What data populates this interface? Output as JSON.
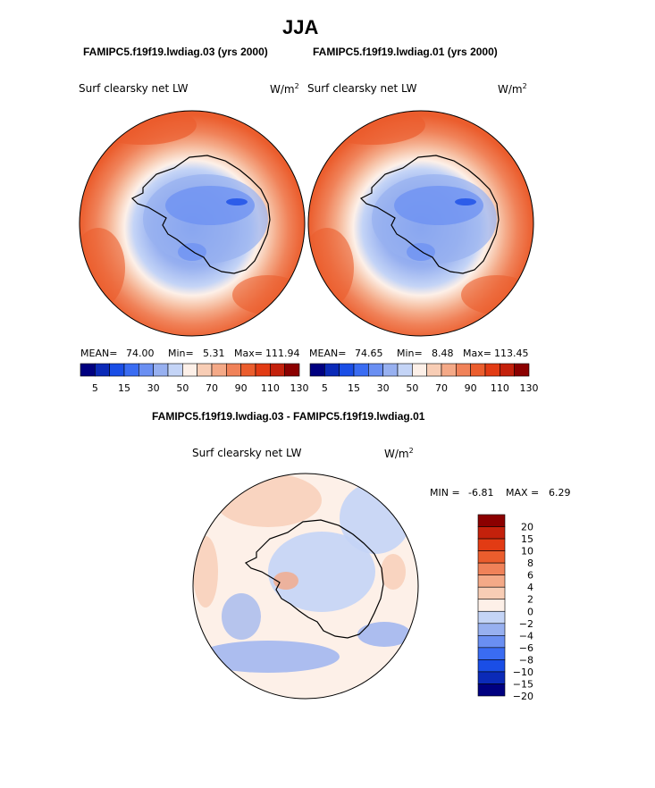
{
  "header": {
    "season": "JJA",
    "case_a_title": "FAMIPC5.f19f19.lwdiag.03 (yrs 2000)",
    "case_b_title": "FAMIPC5.f19f19.lwdiag.01 (yrs 2000)",
    "diff_title": "FAMIPC5.f19f19.lwdiag.03 - FAMIPC5.f19f19.lwdiag.01"
  },
  "colors": {
    "abs_scale": [
      "#000080",
      "#0b2ab8",
      "#1a4ee6",
      "#3a6cf2",
      "#6a8ff2",
      "#97b0f0",
      "#c4d4f6",
      "#fdf0e8",
      "#f8cdb5",
      "#f4a987",
      "#f08259",
      "#eb5d2d",
      "#e23b14",
      "#c4210c",
      "#8b0000"
    ],
    "diff_scale": [
      "#000080",
      "#0b2ab8",
      "#1a4ee6",
      "#3a6cf2",
      "#6a8ff2",
      "#97b0f0",
      "#c4d4f6",
      "#fdf0e8",
      "#f8cdb5",
      "#f4a987",
      "#f08259",
      "#eb5d2d",
      "#e23b14",
      "#c4210c",
      "#8b0000"
    ]
  },
  "chart_data": [
    {
      "type": "heatmap",
      "panel": "case_a",
      "variable": "Surf clearsky net LW",
      "units": "W/m2",
      "units_base": "W/m",
      "units_exp": "2",
      "mean_label": "MEAN=",
      "mean": "74.00",
      "min_label": "Min=",
      "min": "5.31",
      "max_label": "Max=",
      "max": "111.94",
      "colorbar_ticks": [
        "5",
        "15",
        "30",
        "50",
        "70",
        "90",
        "110",
        "130"
      ]
    },
    {
      "type": "heatmap",
      "panel": "case_b",
      "variable": "Surf clearsky net LW",
      "units": "W/m2",
      "units_base": "W/m",
      "units_exp": "2",
      "mean_label": "MEAN=",
      "mean": "74.65",
      "min_label": "Min=",
      "min": "8.48",
      "max_label": "Max=",
      "max": "113.45",
      "colorbar_ticks": [
        "5",
        "15",
        "30",
        "50",
        "70",
        "90",
        "110",
        "130"
      ]
    },
    {
      "type": "heatmap",
      "panel": "difference",
      "variable": "Surf clearsky net LW",
      "units": "W/m2",
      "units_base": "W/m",
      "units_exp": "2",
      "min_label": "MIN =",
      "min": "-6.81",
      "max_label": "MAX =",
      "max": "6.29",
      "colorbar_ticks": [
        "20",
        "15",
        "10",
        "8",
        "6",
        "4",
        "2",
        "0",
        "−2",
        "−4",
        "−6",
        "−8",
        "−10",
        "−15",
        "−20"
      ]
    }
  ]
}
